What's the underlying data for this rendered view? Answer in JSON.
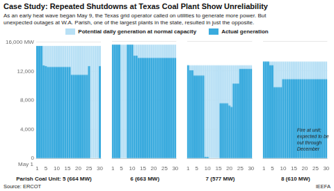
{
  "chart_data": [
    {
      "type": "bar",
      "title": "Case Study: Repeated Shutdowns at Texas Coal Plant Show Unreliability",
      "subtitle": "As an early heat wave began May 9, the Texas grid operator called on utilities to generate more power. But\nunexpected outages at W.A. Parish, one of the largest plants in the state, resulted in just the opposite.",
      "xlabel": "Parish Coal Unit: 5 (664 MW)",
      "categories": [
        "1",
        null,
        null,
        null,
        "5",
        null,
        null,
        null,
        null,
        "10",
        null,
        null,
        null,
        null,
        "15",
        null,
        null,
        null,
        null,
        "20",
        null,
        null,
        null,
        null,
        "25",
        null,
        null,
        null,
        null,
        "30"
      ],
      "series": [
        {
          "name": "Potential daily generation at normal capacity",
          "color": "#b8e0f5",
          "values": [
            15500,
            15500,
            15500,
            15500,
            15500,
            15500,
            15500,
            15500,
            15500,
            15500,
            15500,
            15500,
            15500,
            15500,
            15500,
            15500,
            15500,
            15500,
            15500,
            15500,
            15500,
            15500,
            15500,
            15500,
            15500,
            15500,
            15500,
            15500,
            15500,
            15500
          ]
        },
        {
          "name": "Actual generation",
          "color": "#3aabde",
          "values": [
            15500,
            15500,
            15500,
            12800,
            12700,
            12600,
            12600,
            12600,
            12600,
            12600,
            12600,
            12600,
            12600,
            12600,
            12600,
            12600,
            11500,
            11500,
            11500,
            11500,
            11500,
            11500,
            11500,
            11500,
            12700,
            0,
            0,
            0,
            0,
            12700
          ]
        }
      ],
      "ylim": [
        0,
        16000
      ],
      "yticks": [
        0,
        {
          "value": 4000,
          "label": "4,000"
        },
        {
          "value": 8000,
          "label": "8,000"
        },
        {
          "value": 12000,
          "label": "12,000"
        },
        {
          "value": 16000,
          "label": "16,000 MW"
        }
      ],
      "grid": true,
      "legend": "top",
      "annotations": [
        "May 1",
        "Source: ERCOT",
        "IEEFA"
      ]
    },
    {
      "type": "bar",
      "xlabel": "6 (663 MW)",
      "categories": [
        "1",
        null,
        null,
        null,
        "5",
        null,
        null,
        null,
        null,
        "10",
        null,
        null,
        null,
        null,
        "15",
        null,
        null,
        null,
        null,
        "20",
        null,
        null,
        null,
        null,
        "25",
        null,
        null,
        null,
        null,
        "30"
      ],
      "series": [
        {
          "name": "Potential daily generation at normal capacity",
          "color": "#b8e0f5",
          "values": [
            15500,
            15500,
            15500,
            15500,
            15500,
            15500,
            15500,
            15500,
            15500,
            15500,
            15500,
            15500,
            15500,
            15500,
            15500,
            15500,
            15500,
            15500,
            15500,
            15500,
            15500,
            15500,
            15500,
            15500,
            15500,
            15500,
            15500,
            15500,
            15500,
            15500
          ]
        },
        {
          "name": "Actual generation",
          "color": "#3aabde",
          "values": [
            15500,
            15500,
            15500,
            15500,
            0,
            0,
            0,
            15500,
            15500,
            15500,
            14000,
            14000,
            13700,
            13700,
            13700,
            13700,
            13700,
            13700,
            13700,
            13700,
            13700,
            13700,
            13700,
            13700,
            13700,
            13700,
            13700,
            13700,
            13700,
            13700
          ]
        }
      ],
      "ylim": [
        0,
        16000
      ],
      "yticks": [
        0,
        {
          "value": 4000,
          "label": "4,000"
        },
        {
          "value": 8000,
          "label": "8,000"
        },
        {
          "value": 12000,
          "label": "12,000"
        },
        {
          "value": 16000,
          "label": "16,000 MW"
        }
      ],
      "grid": true,
      "tick_labels": "x"
    },
    {
      "type": "bar",
      "xlabel": "7 (577 MW)",
      "categories": [
        "1",
        null,
        null,
        null,
        "5",
        null,
        null,
        null,
        null,
        "10",
        null,
        null,
        null,
        null,
        "15",
        null,
        null,
        null,
        null,
        "20",
        null,
        null,
        null,
        null,
        "25",
        null,
        null,
        null,
        null,
        "30"
      ],
      "series": [
        {
          "name": "Potential daily generation at normal capacity",
          "color": "#b8e0f5",
          "values": [
            12700,
            12700,
            12700,
            12700,
            12700,
            12700,
            12700,
            12700,
            12700,
            12700,
            12700,
            12700,
            12700,
            12700,
            12700,
            12700,
            12700,
            12700,
            12700,
            12700,
            12700,
            12700,
            12700,
            12700,
            12700,
            12700,
            12700,
            12700,
            12700,
            12700
          ]
        },
        {
          "name": "Actual generation",
          "color": "#3aabde",
          "values": [
            12700,
            12000,
            12000,
            11300,
            11300,
            11300,
            11300,
            11300,
            200,
            200,
            0,
            0,
            0,
            0,
            0,
            7500,
            7500,
            7500,
            7500,
            7200,
            7000,
            10200,
            10200,
            10200,
            12200,
            12200,
            12200,
            12200,
            12200,
            12200
          ]
        }
      ],
      "ylim": [
        0,
        16000
      ],
      "yticks": [
        0,
        {
          "value": 4000,
          "label": "4,000"
        },
        {
          "value": 8000,
          "label": "8,000"
        },
        {
          "value": 12000,
          "label": "12,000"
        },
        {
          "value": 16000,
          "label": "16,000 MW"
        }
      ],
      "grid": true,
      "tick_labels": "x"
    },
    {
      "type": "bar",
      "xlabel": "8 (610 MW)",
      "categories": [
        "1",
        null,
        null,
        null,
        "5",
        null,
        null,
        null,
        null,
        "10",
        null,
        null,
        null,
        null,
        "15",
        null,
        null,
        null,
        null,
        "20",
        null,
        null,
        null,
        null,
        "25",
        null,
        null,
        null,
        null,
        "30"
      ],
      "series": [
        {
          "name": "Potential daily generation at normal capacity",
          "color": "#b8e0f5",
          "values": [
            13200,
            13200,
            13200,
            13200,
            13200,
            13200,
            13200,
            13200,
            13200,
            13200,
            13200,
            13200,
            13200,
            13200,
            13200,
            13200,
            13200,
            13200,
            13200,
            13200,
            13200,
            13200,
            13200,
            13200,
            13200,
            13200,
            13200,
            13200,
            13200,
            13200
          ]
        },
        {
          "name": "Actual generation",
          "color": "#3aabde",
          "values": [
            13200,
            13200,
            13200,
            12700,
            12700,
            9700,
            9700,
            9700,
            9700,
            10800,
            10800,
            10800,
            10800,
            10800,
            10800,
            10800,
            10800,
            10800,
            10800,
            10800,
            10800,
            10800,
            10800,
            10800,
            10800,
            10800,
            10800,
            10800,
            10800,
            10800
          ]
        }
      ],
      "ylim": [
        0,
        16000
      ],
      "yticks": [
        0,
        {
          "value": 4000,
          "label": "4,000"
        },
        {
          "value": 8000,
          "label": "8,000"
        },
        {
          "value": 12000,
          "label": "12,000"
        },
        {
          "value": 16000,
          "label": "16,000 MW"
        }
      ],
      "grid": true,
      "tick_labels": "x",
      "annotations": [
        "Fire at unit;\nexpected to be\nout through\nDecember"
      ]
    }
  ]
}
